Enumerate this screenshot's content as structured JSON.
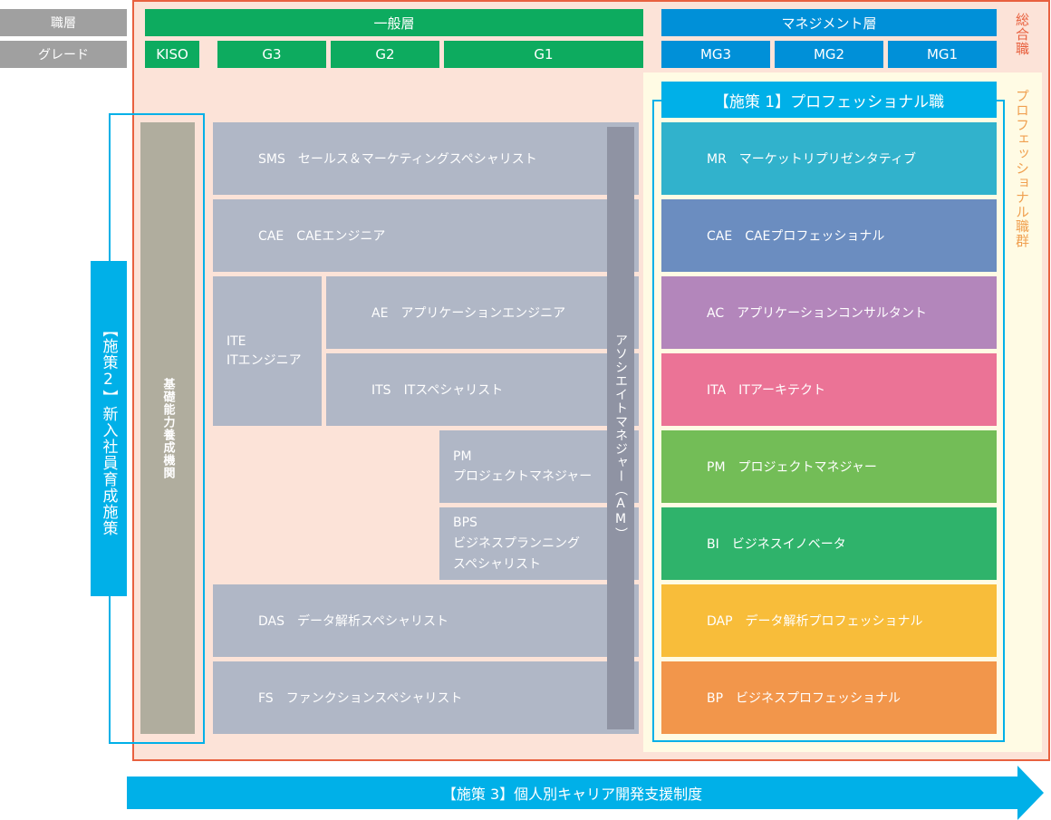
{
  "header": {
    "tier_label": "職層",
    "grade_label": "グレード",
    "general": "一般層",
    "management": "マネジメント層",
    "grades_general": [
      "KISO",
      "G3",
      "G2",
      "G1"
    ],
    "grades_mg": [
      "MG3",
      "MG2",
      "MG1"
    ],
    "sogo": "総合職"
  },
  "pro": {
    "group_label": "プロフェッショナル職群",
    "title": "【施策 1】プロフェッショナル職",
    "rows": [
      {
        "label": "MR　マーケットリプリゼンタティブ",
        "color": "#31b2cc"
      },
      {
        "label": "CAE　CAEプロフェッショナル",
        "color": "#6b8dc0"
      },
      {
        "label": "AC　アプリケーションコンサルタント",
        "color": "#b386bb"
      },
      {
        "label": "ITA　ITアーキテクト",
        "color": "#eb7396"
      },
      {
        "label": "PM　プロジェクトマネジャー",
        "color": "#73bd57"
      },
      {
        "label": "BI　ビジネスイノベータ",
        "color": "#2fb36b"
      },
      {
        "label": "DAP　データ解析プロフェッショナル",
        "color": "#f8bd3a"
      },
      {
        "label": "BP　ビジネスプロフェッショナル",
        "color": "#f2964b"
      }
    ]
  },
  "general": {
    "sms": "SMS　セールス＆マーケティングスペシャリスト",
    "cae": "CAE　CAEエンジニア",
    "ite1": "ITE",
    "ite2": "ITエンジニア",
    "ae": "AE　アプリケーションエンジニア",
    "its": "ITS　ITスペシャリスト",
    "pm1": "PM",
    "pm2": "プロジェクトマネジャー",
    "bps1": "BPS",
    "bps2": "ビジネスプランニング",
    "bps3": "スペシャリスト",
    "das": "DAS　データ解析スペシャリスト",
    "fs": "FS　ファンクションスペシャリスト",
    "am": "アソシエイトマネジャー（AM）"
  },
  "kiso": "基礎能力養成機関",
  "measure2": "【施策2】新入社員育成施策",
  "measure3": "【施策 3】個人別キャリア開発支援制度"
}
